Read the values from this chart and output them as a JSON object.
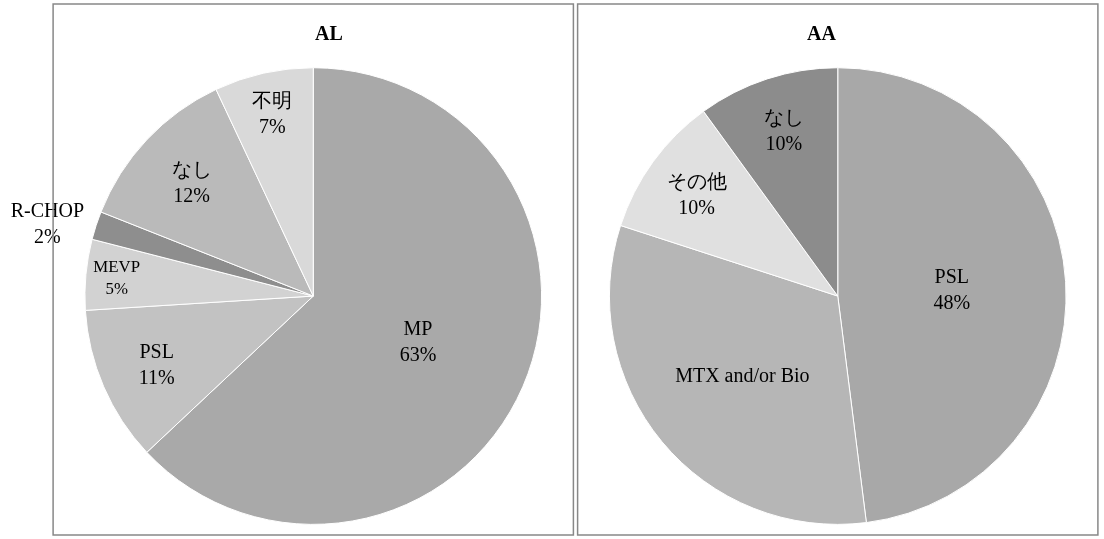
{
  "chart_data": [
    {
      "type": "pie",
      "title": "AL",
      "categories": [
        "MP",
        "PSL",
        "MEVP",
        "R-CHOP",
        "なし",
        "不明"
      ],
      "values": [
        63,
        11,
        5,
        2,
        12,
        7
      ],
      "value_labels": [
        "63%",
        "11%",
        "5%",
        "2%",
        "12%",
        "7%"
      ],
      "colors": [
        "#a9a9a9",
        "#c2c2c2",
        "#d2d2d2",
        "#8e8e8e",
        "#bababa",
        "#d9d9d9"
      ],
      "legend": false
    },
    {
      "type": "pie",
      "title": "AA",
      "categories": [
        "PSL",
        "MTX and/or Bio",
        "その他",
        "なし"
      ],
      "values": [
        48,
        32,
        10,
        10
      ],
      "value_labels": [
        "48%",
        null,
        "10%",
        "10%"
      ],
      "colors": [
        "#a8a8a8",
        "#b6b6b6",
        "#e0e0e0",
        "#8c8c8c"
      ],
      "legend": false
    }
  ]
}
